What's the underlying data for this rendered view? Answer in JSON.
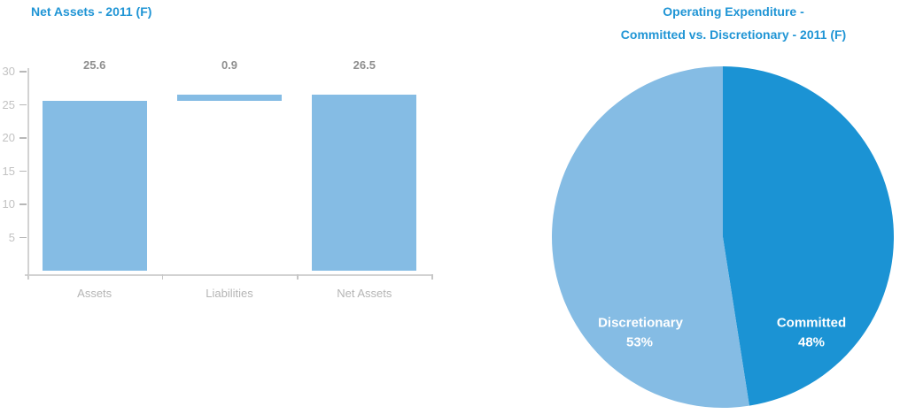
{
  "colors": {
    "title_blue": "#2095d5",
    "bar_fill": "#85bce4",
    "pie_committed": "#1b93d4",
    "pie_discretionary": "#85bce4",
    "value_label_gray": "#8e8e8e",
    "axis_tick_label_gray": "#c2c2c2",
    "category_label_gray": "#b5b5b5",
    "axis_line_gray": "#d2d2d2",
    "pie_label_white": "#ffffff"
  },
  "chart_data": [
    {
      "type": "bar",
      "variant": "waterfall",
      "title": "Net Assets - 2011 (F)",
      "categories": [
        "Assets",
        "Liabilities",
        "Net Assets"
      ],
      "values": [
        25.6,
        0.9,
        26.5
      ],
      "value_labels": [
        "25.6",
        "0.9",
        "26.5"
      ],
      "segments": [
        {
          "from": 0,
          "to": 25.6
        },
        {
          "from": 25.6,
          "to": 26.5
        },
        {
          "from": 0,
          "to": 26.5
        }
      ],
      "xlabel": "",
      "ylabel": "",
      "ylim": [
        0,
        30
      ],
      "yticks": [
        5,
        10,
        15,
        20,
        25,
        30
      ],
      "grid": false,
      "legend": "none",
      "bar_color": "#85bce4"
    },
    {
      "type": "pie",
      "title": "Operating Expenditure - Committed vs. Discretionary - 2011 (F)",
      "title_line1": "Operating Expenditure -",
      "title_line2": "Committed vs. Discretionary - 2011 (F)",
      "start_angle_deg": 0,
      "direction": "clockwise",
      "legend": "none",
      "slices": [
        {
          "label": "Committed",
          "pct_label": "48%",
          "value": 48,
          "color": "#1b93d4"
        },
        {
          "label": "Discretionary",
          "pct_label": "53%",
          "value": 53,
          "color": "#85bce4"
        }
      ]
    }
  ]
}
